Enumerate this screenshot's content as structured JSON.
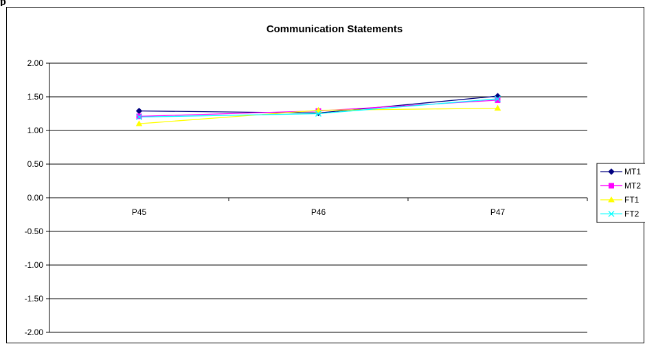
{
  "corner_text": "p",
  "colors": {
    "MT1": "#000080",
    "MT2": "#ff00ff",
    "FT1": "#ffff00",
    "FT2": "#00ffff",
    "gridline": "#000000",
    "border": "#000000"
  },
  "chart_data": {
    "type": "line",
    "title": "Communication Statements",
    "xlabel": "",
    "ylabel": "",
    "categories": [
      "P45",
      "P46",
      "P47"
    ],
    "ylim": [
      -2.0,
      2.0
    ],
    "ytick_step": 0.5,
    "ytick_labels": [
      "2.00",
      "1.50",
      "1.00",
      "0.50",
      "0.00",
      "-0.50",
      "-1.00",
      "-1.50",
      "-2.00"
    ],
    "grid": true,
    "legend_position": "right",
    "series": [
      {
        "name": "MT1",
        "marker": "diamond",
        "color": "#000080",
        "values": [
          1.29,
          1.26,
          1.51
        ]
      },
      {
        "name": "MT2",
        "marker": "square",
        "color": "#ff00ff",
        "values": [
          1.21,
          1.29,
          1.45
        ]
      },
      {
        "name": "FT1",
        "marker": "triangle",
        "color": "#ffff00",
        "values": [
          1.1,
          1.3,
          1.33
        ]
      },
      {
        "name": "FT2",
        "marker": "x",
        "color": "#00ffff",
        "values": [
          1.2,
          1.25,
          1.47
        ]
      }
    ]
  }
}
